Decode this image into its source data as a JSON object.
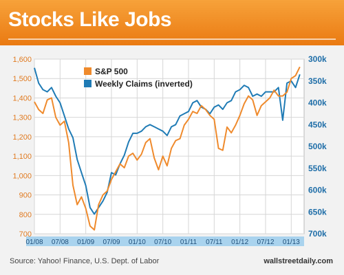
{
  "header": {
    "title": "Stocks Like Jobs"
  },
  "footer": {
    "source": "Source: Yahoo! Finance, U.S. Dept. of Labor",
    "brand": "wallstreetdaily.com"
  },
  "colors": {
    "banner": "#ef8a1e",
    "sp500": "#ef8a2c",
    "claims": "#1f7bb5",
    "left_axis_text": "#e07a20",
    "right_axis_text": "#1f6ea8",
    "x_band": "#a9d3ee"
  },
  "chart_data": {
    "type": "line",
    "title": "Stocks Like Jobs",
    "legend_position": "top-left",
    "grid": true,
    "x_tick_labels": [
      "01/08",
      "07/08",
      "01/09",
      "07/09",
      "01/10",
      "07/10",
      "01/11",
      "07/11",
      "01/12",
      "07/12",
      "01/13"
    ],
    "left_axis": {
      "ylim": [
        700,
        1600
      ],
      "ticks": [
        "700",
        "800",
        "900",
        "1,000",
        "1,100",
        "1,200",
        "1,300",
        "1,400",
        "1,500",
        "1,600"
      ]
    },
    "right_axis": {
      "ylim": [
        300,
        700
      ],
      "inverted": true,
      "ticks": [
        "300k",
        "350k",
        "400k",
        "450k",
        "500k",
        "550k",
        "600k",
        "650k",
        "700k"
      ]
    },
    "series": [
      {
        "name": "S&P 500",
        "axis": "left",
        "points": [
          [
            "2008-01",
            1380
          ],
          [
            "2008-02",
            1340
          ],
          [
            "2008-03",
            1320
          ],
          [
            "2008-04",
            1390
          ],
          [
            "2008-05",
            1400
          ],
          [
            "2008-06",
            1300
          ],
          [
            "2008-07",
            1260
          ],
          [
            "2008-08",
            1280
          ],
          [
            "2008-09",
            1170
          ],
          [
            "2008-10",
            950
          ],
          [
            "2008-11",
            850
          ],
          [
            "2008-12",
            890
          ],
          [
            "2009-01",
            830
          ],
          [
            "2009-02",
            740
          ],
          [
            "2009-03",
            720
          ],
          [
            "2009-04",
            850
          ],
          [
            "2009-05",
            900
          ],
          [
            "2009-06",
            920
          ],
          [
            "2009-07",
            980
          ],
          [
            "2009-08",
            1020
          ],
          [
            "2009-09",
            1060
          ],
          [
            "2009-10",
            1040
          ],
          [
            "2009-11",
            1100
          ],
          [
            "2009-12",
            1115
          ],
          [
            "2010-01",
            1080
          ],
          [
            "2010-02",
            1110
          ],
          [
            "2010-03",
            1170
          ],
          [
            "2010-04",
            1190
          ],
          [
            "2010-05",
            1090
          ],
          [
            "2010-06",
            1030
          ],
          [
            "2010-07",
            1100
          ],
          [
            "2010-08",
            1050
          ],
          [
            "2010-09",
            1140
          ],
          [
            "2010-10",
            1180
          ],
          [
            "2010-11",
            1190
          ],
          [
            "2010-12",
            1260
          ],
          [
            "2011-01",
            1290
          ],
          [
            "2011-02",
            1330
          ],
          [
            "2011-03",
            1320
          ],
          [
            "2011-04",
            1360
          ],
          [
            "2011-05",
            1340
          ],
          [
            "2011-06",
            1310
          ],
          [
            "2011-07",
            1290
          ],
          [
            "2011-08",
            1140
          ],
          [
            "2011-09",
            1130
          ],
          [
            "2011-10",
            1250
          ],
          [
            "2011-11",
            1220
          ],
          [
            "2011-12",
            1260
          ],
          [
            "2012-01",
            1310
          ],
          [
            "2012-02",
            1370
          ],
          [
            "2012-03",
            1410
          ],
          [
            "2012-04",
            1390
          ],
          [
            "2012-05",
            1310
          ],
          [
            "2012-06",
            1360
          ],
          [
            "2012-07",
            1380
          ],
          [
            "2012-08",
            1400
          ],
          [
            "2012-09",
            1440
          ],
          [
            "2012-10",
            1410
          ],
          [
            "2012-11",
            1410
          ],
          [
            "2012-12",
            1430
          ],
          [
            "2013-01",
            1500
          ],
          [
            "2013-02",
            1515
          ],
          [
            "2013-03",
            1560
          ]
        ]
      },
      {
        "name": "Weekly Claims (inverted)",
        "axis": "right",
        "points": [
          [
            "2008-01",
            320
          ],
          [
            "2008-02",
            355
          ],
          [
            "2008-03",
            370
          ],
          [
            "2008-04",
            375
          ],
          [
            "2008-05",
            365
          ],
          [
            "2008-06",
            385
          ],
          [
            "2008-07",
            400
          ],
          [
            "2008-08",
            430
          ],
          [
            "2008-09",
            460
          ],
          [
            "2008-10",
            480
          ],
          [
            "2008-11",
            530
          ],
          [
            "2008-12",
            560
          ],
          [
            "2009-01",
            590
          ],
          [
            "2009-02",
            640
          ],
          [
            "2009-03",
            655
          ],
          [
            "2009-04",
            640
          ],
          [
            "2009-05",
            625
          ],
          [
            "2009-06",
            605
          ],
          [
            "2009-07",
            560
          ],
          [
            "2009-08",
            565
          ],
          [
            "2009-09",
            540
          ],
          [
            "2009-10",
            520
          ],
          [
            "2009-11",
            490
          ],
          [
            "2009-12",
            470
          ],
          [
            "2010-01",
            470
          ],
          [
            "2010-02",
            465
          ],
          [
            "2010-03",
            455
          ],
          [
            "2010-04",
            450
          ],
          [
            "2010-05",
            455
          ],
          [
            "2010-06",
            460
          ],
          [
            "2010-07",
            465
          ],
          [
            "2010-08",
            475
          ],
          [
            "2010-09",
            455
          ],
          [
            "2010-10",
            450
          ],
          [
            "2010-11",
            430
          ],
          [
            "2010-12",
            425
          ],
          [
            "2011-01",
            420
          ],
          [
            "2011-02",
            400
          ],
          [
            "2011-03",
            395
          ],
          [
            "2011-04",
            410
          ],
          [
            "2011-05",
            415
          ],
          [
            "2011-06",
            425
          ],
          [
            "2011-07",
            410
          ],
          [
            "2011-08",
            405
          ],
          [
            "2011-09",
            415
          ],
          [
            "2011-10",
            400
          ],
          [
            "2011-11",
            395
          ],
          [
            "2011-12",
            375
          ],
          [
            "2012-01",
            370
          ],
          [
            "2012-02",
            360
          ],
          [
            "2012-03",
            365
          ],
          [
            "2012-04",
            385
          ],
          [
            "2012-05",
            380
          ],
          [
            "2012-06",
            385
          ],
          [
            "2012-07",
            375
          ],
          [
            "2012-08",
            375
          ],
          [
            "2012-09",
            375
          ],
          [
            "2012-10",
            365
          ],
          [
            "2012-11",
            440
          ],
          [
            "2012-12",
            355
          ],
          [
            "2013-01",
            350
          ],
          [
            "2013-02",
            365
          ],
          [
            "2013-03",
            335
          ]
        ]
      }
    ]
  }
}
